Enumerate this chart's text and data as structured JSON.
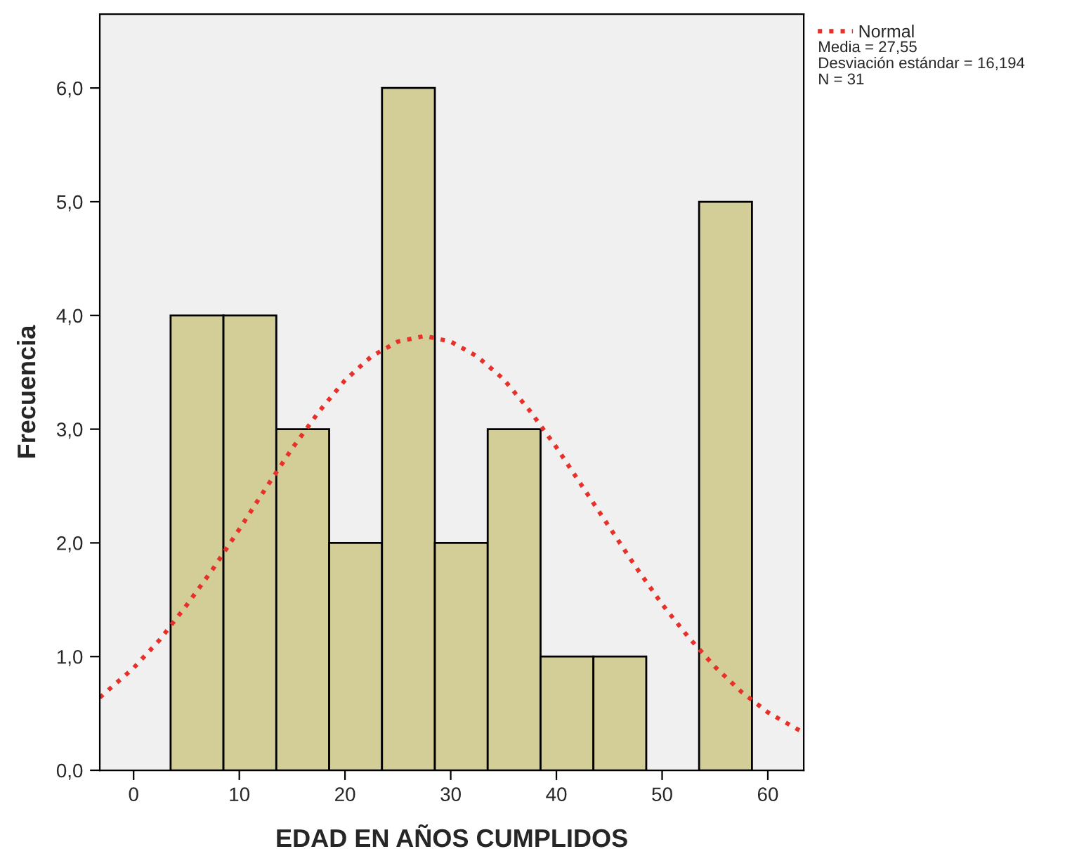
{
  "chart_data": {
    "type": "histogram",
    "xlabel": "EDAD EN AÑOS CUMPLIDOS",
    "ylabel": "Frecuencia",
    "bins": [
      3.5,
      8.5,
      13.5,
      18.5,
      23.5,
      28.5,
      33.5,
      38.5,
      43.5,
      48.5,
      53.5,
      58.5
    ],
    "values": [
      4,
      4,
      3,
      2,
      6,
      2,
      3,
      1,
      1,
      0,
      5
    ],
    "color": "#d3ce97",
    "series": [
      {
        "type": "line",
        "name": "Normal",
        "color": "#e8302a",
        "line_style": "dotted",
        "x": [
          -3.2,
          0,
          2.5,
          5,
          7.5,
          10,
          12.5,
          15,
          17.5,
          20,
          22.5,
          25,
          27.55,
          30,
          32.5,
          35,
          37.5,
          40,
          42.5,
          45,
          47.5,
          50,
          52.5,
          55,
          57.5,
          60,
          63.4
        ],
        "values": [
          0.64,
          0.9,
          1.15,
          1.45,
          1.77,
          2.12,
          2.48,
          2.83,
          3.15,
          3.43,
          3.64,
          3.77,
          3.82,
          3.77,
          3.64,
          3.44,
          3.16,
          2.84,
          2.49,
          2.14,
          1.79,
          1.46,
          1.17,
          0.91,
          0.69,
          0.51,
          0.33
        ]
      }
    ],
    "xlim": [
      -3.2,
      63.4
    ],
    "ylim": [
      0,
      6.65
    ],
    "xticks": [
      0,
      10,
      20,
      30,
      40,
      50,
      60
    ],
    "yticks": [
      {
        "value": 0,
        "label": "0,0"
      },
      {
        "value": 1,
        "label": "1,0"
      },
      {
        "value": 2,
        "label": "2,0"
      },
      {
        "value": 3,
        "label": "3,0"
      },
      {
        "value": 4,
        "label": "4,0"
      },
      {
        "value": 5,
        "label": "5,0"
      },
      {
        "value": 6,
        "label": "6,0"
      }
    ],
    "legend": "top right",
    "annotations": [
      "Media = 27,55",
      "Desviación estándar = 16,194",
      "N = 31"
    ]
  }
}
